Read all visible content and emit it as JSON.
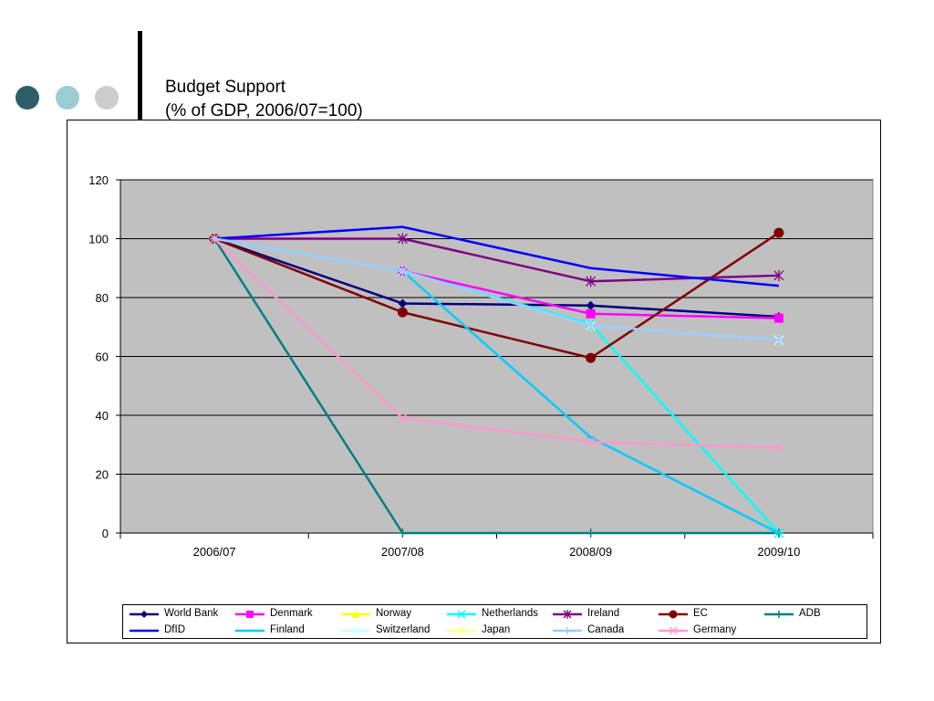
{
  "slide": {
    "title_line1": "Budget Support",
    "title_line2": "(% of GDP, 2006/07=100)",
    "dot_colors": [
      "#2f5f66",
      "#99cdd1",
      "#cccccc"
    ]
  },
  "chart_data": {
    "type": "line",
    "categories": [
      "2006/07",
      "2007/08",
      "2008/09",
      "2009/10"
    ],
    "ylim": [
      0,
      120
    ],
    "yticks": [
      0,
      20,
      40,
      60,
      80,
      100,
      120
    ],
    "grid": true,
    "plot_background": "#c0c0c0",
    "legend_position": "bottom",
    "series": [
      {
        "name": "World Bank",
        "color": "#000080",
        "marker": "diamond",
        "values": [
          100,
          78,
          77.3,
          73.5
        ]
      },
      {
        "name": "Denmark",
        "color": "#ff00ff",
        "marker": "square",
        "values": [
          100,
          89,
          74.5,
          73
        ]
      },
      {
        "name": "Norway",
        "color": "#ffff00",
        "marker": "triangle",
        "values": [
          null,
          null,
          null,
          null
        ]
      },
      {
        "name": "Netherlands",
        "color": "#00ffff",
        "marker": "x",
        "values": [
          100,
          89,
          71,
          0
        ]
      },
      {
        "name": "Ireland",
        "color": "#800080",
        "marker": "star",
        "values": [
          100,
          100,
          85.5,
          87.5
        ]
      },
      {
        "name": "EC",
        "color": "#800000",
        "marker": "circle",
        "values": [
          100,
          75,
          59.5,
          102
        ]
      },
      {
        "name": "ADB",
        "color": "#008080",
        "marker": "plus",
        "values": [
          100,
          0,
          0,
          0
        ]
      },
      {
        "name": "DfID",
        "color": "#0000ff",
        "marker": "none",
        "values": [
          100,
          104,
          90,
          84
        ]
      },
      {
        "name": "Finland",
        "color": "#00ccff",
        "marker": "dash",
        "values": [
          100,
          89,
          32.5,
          0
        ]
      },
      {
        "name": "Switzerland",
        "color": "#ccffff",
        "marker": "star",
        "values": [
          100,
          89,
          70.5,
          65.5
        ]
      },
      {
        "name": "Japan",
        "color": "#ffff99",
        "marker": "star",
        "values": [
          null,
          null,
          null,
          null
        ]
      },
      {
        "name": "Canada",
        "color": "#99ccff",
        "marker": "plus",
        "values": [
          100,
          89,
          70.5,
          65.5
        ]
      },
      {
        "name": "Germany",
        "color": "#ff99cc",
        "marker": "x",
        "values": [
          100,
          39,
          31,
          29
        ]
      }
    ]
  }
}
